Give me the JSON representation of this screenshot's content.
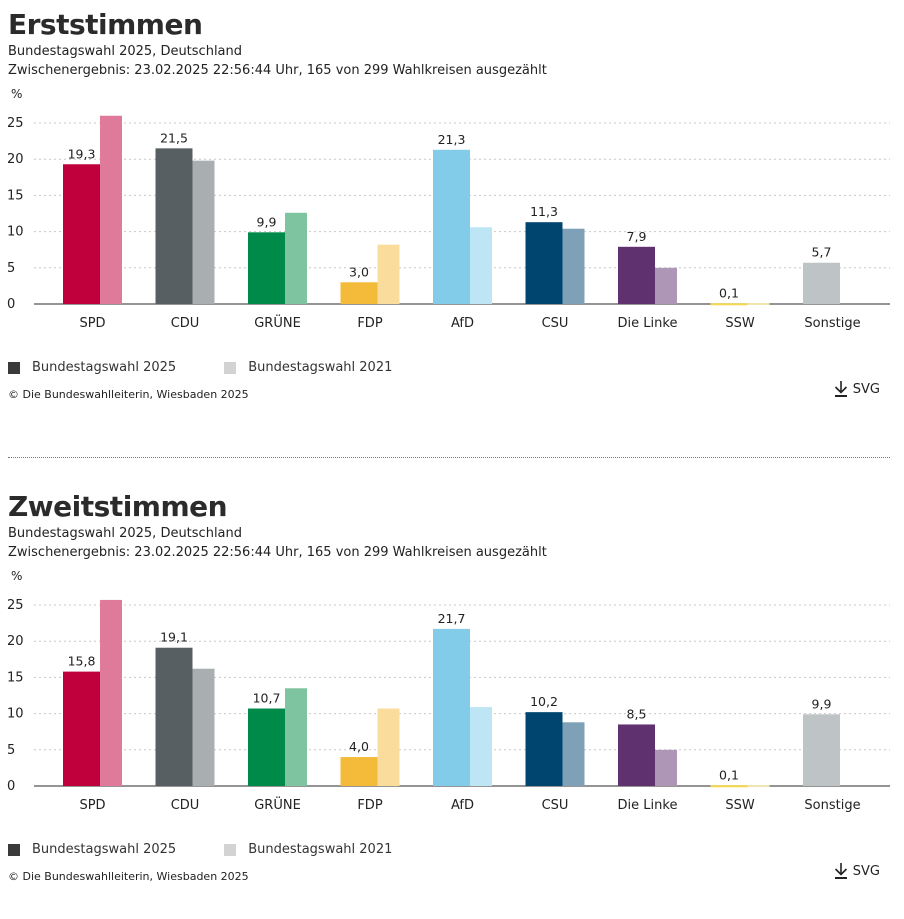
{
  "panels": [
    {
      "title": "Erststimmen",
      "subtitle": "Bundestagswahl 2025, Deutschland",
      "status": "Zwischenergebnis: 23.02.2025 22:56:44 Uhr, 165 von 299 Wahlkreisen ausgezählt",
      "unit": "%",
      "legend": [
        {
          "label": "Bundestagswahl 2025",
          "color": "#3a3a3a"
        },
        {
          "label": "Bundestagswahl 2021",
          "color": "#d3d3d3"
        }
      ],
      "credit": "© Die Bundeswahlleiterin, Wiesbaden 2025",
      "download_label": "SVG"
    },
    {
      "title": "Zweitstimmen",
      "subtitle": "Bundestagswahl 2025, Deutschland",
      "status": "Zwischenergebnis: 23.02.2025 22:56:44 Uhr, 165 von 299 Wahlkreisen ausgezählt",
      "unit": "%",
      "legend": [
        {
          "label": "Bundestagswahl 2025",
          "color": "#3a3a3a"
        },
        {
          "label": "Bundestagswahl 2021",
          "color": "#d3d3d3"
        }
      ],
      "credit": "© Die Bundeswahlleiterin, Wiesbaden 2025",
      "download_label": "SVG"
    }
  ],
  "chart_data": [
    {
      "type": "bar",
      "title": "Erststimmen",
      "xlabel": "",
      "ylabel": "%",
      "ylim": [
        0,
        25
      ],
      "yticks": [
        0,
        5,
        10,
        15,
        20,
        25
      ],
      "grid": true,
      "legend_position": "bottom-left",
      "categories": [
        "SPD",
        "CDU",
        "GRÜNE",
        "FDP",
        "AfD",
        "CSU",
        "Die Linke",
        "SSW",
        "Sonstige"
      ],
      "colors_2025": [
        "#c0003c",
        "#575f63",
        "#008a4a",
        "#f4bb3b",
        "#82cce9",
        "#004470",
        "#5f326f",
        "#f6d84e",
        "#bec3c6"
      ],
      "colors_2021": [
        "#df7a9a",
        "#a9aeb1",
        "#7fc4a1",
        "#fadc9c",
        "#bde5f4",
        "#7fa1b8",
        "#ae97b6",
        "#fbeba6",
        "#dde0e2"
      ],
      "series": [
        {
          "name": "Bundestagswahl 2025",
          "values": [
            19.3,
            21.5,
            9.9,
            3.0,
            21.3,
            11.3,
            7.9,
            0.1,
            5.7
          ],
          "labels": [
            "19,3",
            "21,5",
            "9,9",
            "3,0",
            "21,3",
            "11,3",
            "7,9",
            "0,1",
            "5,7"
          ]
        },
        {
          "name": "Bundestagswahl 2021",
          "values": [
            26.0,
            19.8,
            12.6,
            8.2,
            10.6,
            10.4,
            5.0,
            0.1,
            null
          ]
        }
      ]
    },
    {
      "type": "bar",
      "title": "Zweitstimmen",
      "xlabel": "",
      "ylabel": "%",
      "ylim": [
        0,
        25
      ],
      "yticks": [
        0,
        5,
        10,
        15,
        20,
        25
      ],
      "grid": true,
      "legend_position": "bottom-left",
      "categories": [
        "SPD",
        "CDU",
        "GRÜNE",
        "FDP",
        "AfD",
        "CSU",
        "Die Linke",
        "SSW",
        "Sonstige"
      ],
      "colors_2025": [
        "#c0003c",
        "#575f63",
        "#008a4a",
        "#f4bb3b",
        "#82cce9",
        "#004470",
        "#5f326f",
        "#f6d84e",
        "#bec3c6"
      ],
      "colors_2021": [
        "#df7a9a",
        "#a9aeb1",
        "#7fc4a1",
        "#fadc9c",
        "#bde5f4",
        "#7fa1b8",
        "#ae97b6",
        "#fbeba6",
        "#dde0e2"
      ],
      "series": [
        {
          "name": "Bundestagswahl 2025",
          "values": [
            15.8,
            19.1,
            10.7,
            4.0,
            21.7,
            10.2,
            8.5,
            0.1,
            9.9
          ],
          "labels": [
            "15,8",
            "19,1",
            "10,7",
            "4,0",
            "21,7",
            "10,2",
            "8,5",
            "0,1",
            "9,9"
          ]
        },
        {
          "name": "Bundestagswahl 2021",
          "values": [
            25.7,
            16.2,
            13.5,
            10.7,
            10.9,
            8.8,
            5.0,
            0.1,
            null
          ]
        }
      ]
    }
  ]
}
